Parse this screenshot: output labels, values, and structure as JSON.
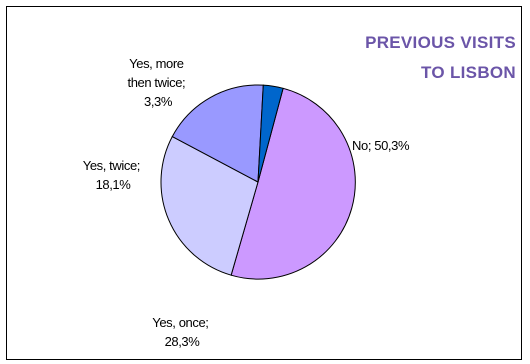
{
  "chart_data": {
    "type": "pie",
    "title_lines": [
      "PREVIOUS VISITS",
      "TO LISBON"
    ],
    "title_color": "#6b55a8",
    "slices": [
      {
        "label_lines": [
          "No; 50,3%"
        ],
        "value": 50.3,
        "color": "#cc99ff"
      },
      {
        "label_lines": [
          "Yes, once;",
          "28,3%"
        ],
        "value": 28.3,
        "color": "#ccccff"
      },
      {
        "label_lines": [
          "Yes, twice;",
          "18,1%"
        ],
        "value": 18.1,
        "color": "#9999ff"
      },
      {
        "label_lines": [
          "Yes, more",
          "then twice;",
          "3,3%"
        ],
        "value": 3.3,
        "color": "#0066cc"
      }
    ],
    "start_angle_deg": -75,
    "direction": "clockwise",
    "legend": "none"
  }
}
